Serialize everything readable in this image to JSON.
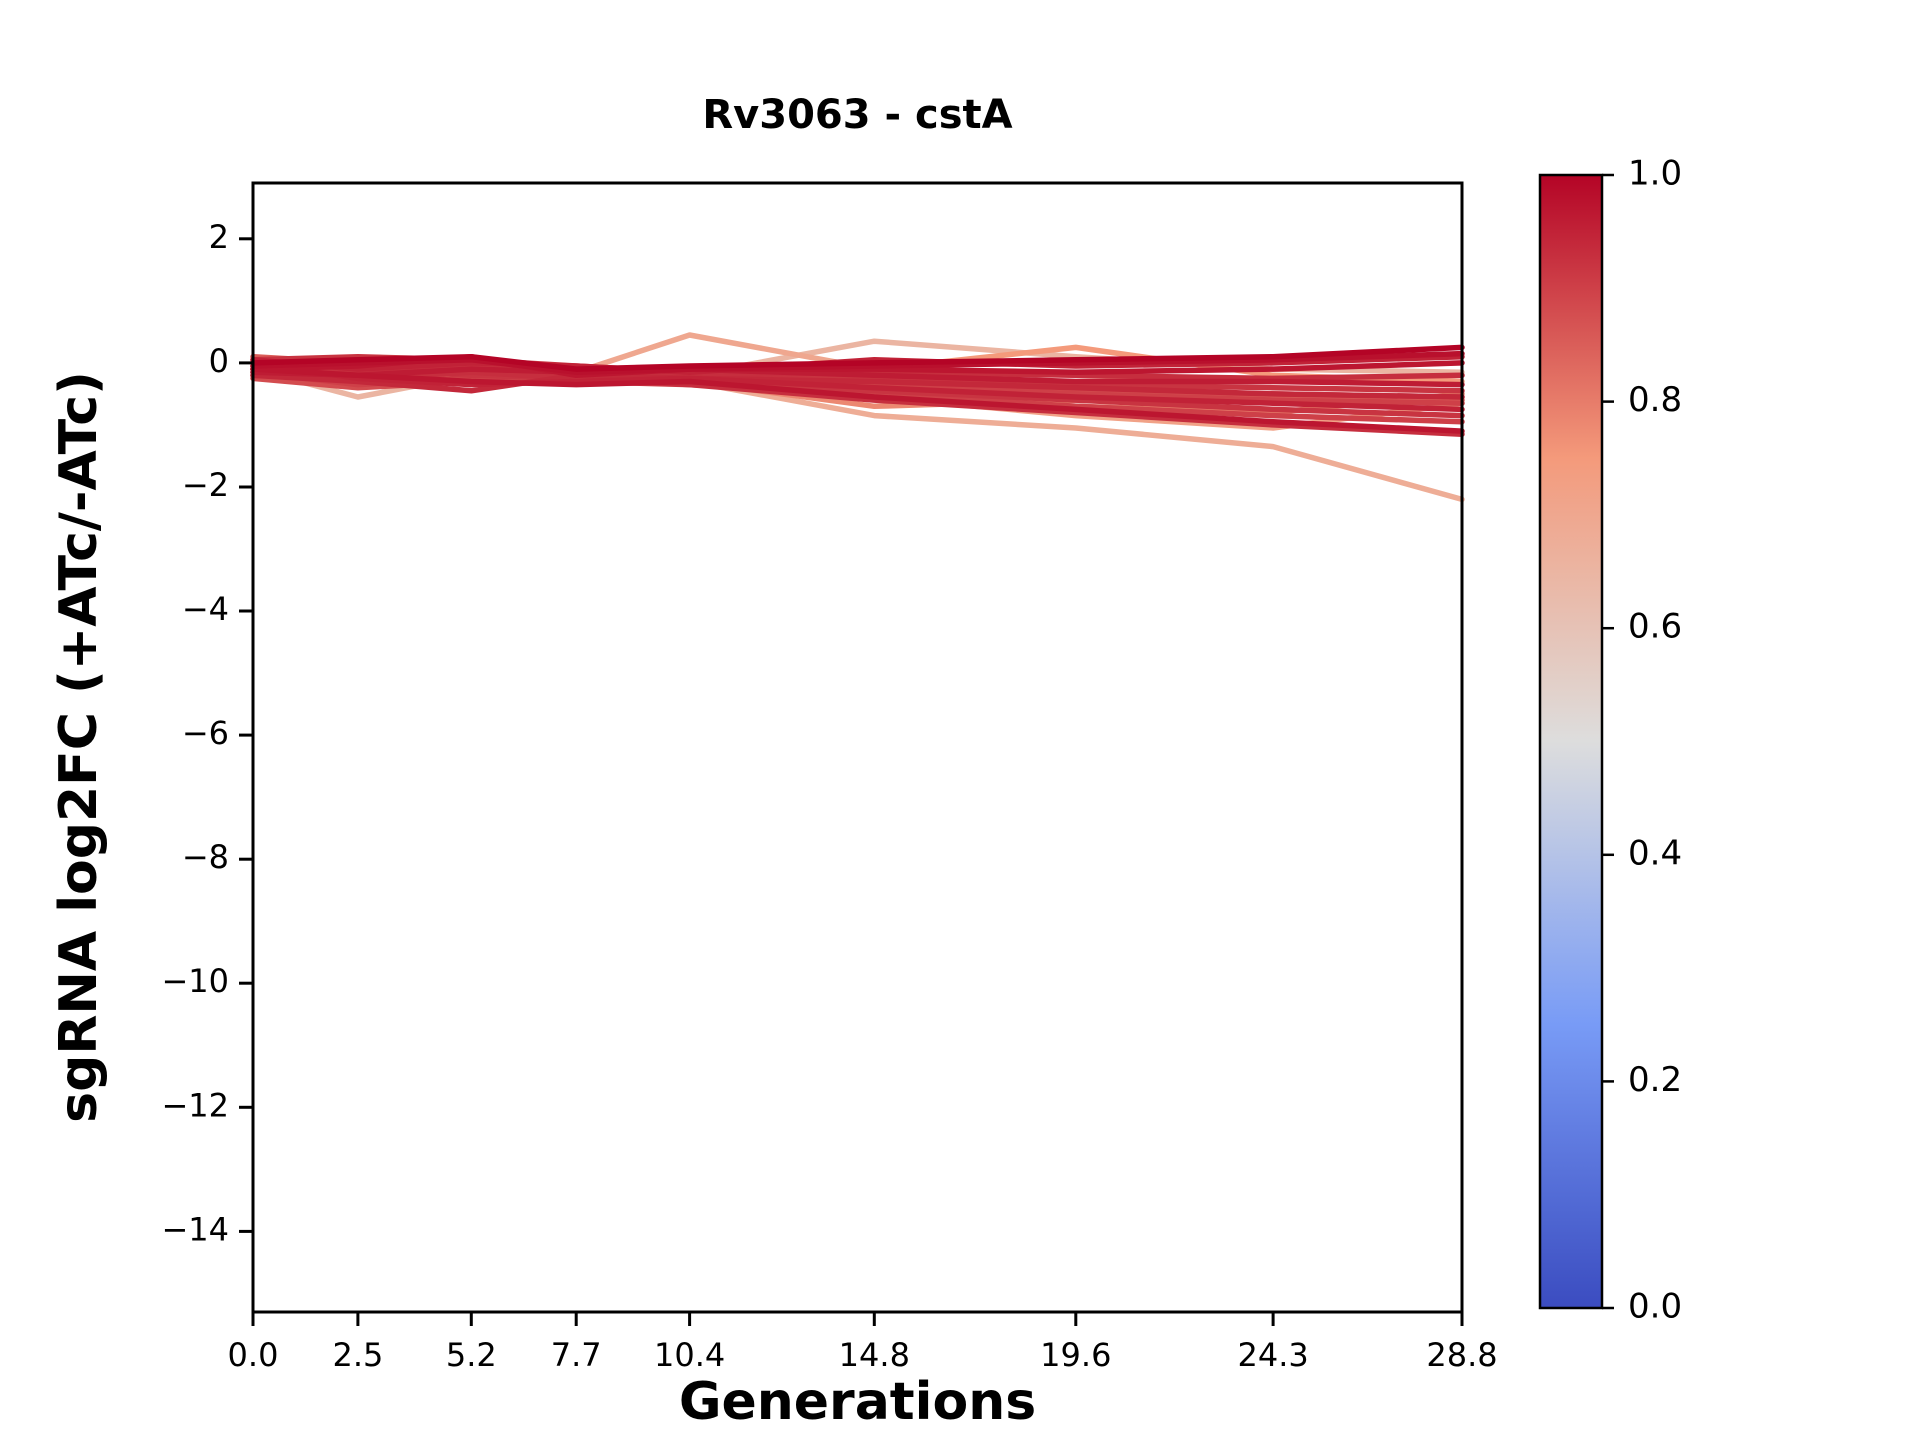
{
  "chart_data": {
    "type": "line",
    "title": "Rv3063 - cstA",
    "xlabel": "Generations",
    "ylabel": "sgRNA log2FC (+ATc/-ATc)",
    "x": [
      0.0,
      2.5,
      5.2,
      7.7,
      10.4,
      14.8,
      19.6,
      24.3,
      28.8
    ],
    "x_tick_labels": [
      "0.0",
      "2.5",
      "5.2",
      "7.7",
      "10.4",
      "14.8",
      "19.6",
      "24.3",
      "28.8"
    ],
    "y_ticks": [
      2,
      0,
      -2,
      -4,
      -6,
      -8,
      -10,
      -12,
      -14
    ],
    "xlim": [
      0,
      28.8
    ],
    "ylim": [
      -15.3,
      2.9
    ],
    "grid": false,
    "colormap": "coolwarm",
    "colorbar": {
      "vmin": 0.0,
      "vmax": 1.0,
      "tick_labels": [
        "1.0",
        "0.8",
        "0.6",
        "0.4",
        "0.2",
        "0.0"
      ],
      "tick_values": [
        1.0,
        0.8,
        0.6,
        0.4,
        0.2,
        0.0
      ]
    },
    "series": [
      {
        "c": 0.65,
        "values": [
          -0.1,
          -0.55,
          -0.2,
          -0.3,
          -0.2,
          0.35,
          0.1,
          -0.1,
          -0.15
        ]
      },
      {
        "c": 0.68,
        "values": [
          0.0,
          -0.2,
          -0.1,
          -0.2,
          -0.3,
          -0.85,
          -1.05,
          -1.35,
          -2.2
        ]
      },
      {
        "c": 0.7,
        "values": [
          0.0,
          -0.3,
          0.05,
          -0.15,
          0.45,
          -0.1,
          -0.2,
          -0.3,
          -0.2
        ]
      },
      {
        "c": 0.72,
        "values": [
          -0.05,
          -0.15,
          -0.2,
          -0.25,
          -0.3,
          -0.55,
          -0.85,
          -1.05,
          -0.65
        ]
      },
      {
        "c": 0.75,
        "values": [
          0.0,
          -0.1,
          -0.05,
          -0.15,
          -0.2,
          -0.1,
          0.25,
          -0.2,
          -0.3
        ]
      },
      {
        "c": 0.78,
        "values": [
          -0.1,
          -0.2,
          -0.25,
          -0.3,
          -0.3,
          -0.7,
          -0.6,
          -0.55,
          -0.6
        ]
      },
      {
        "c": 0.8,
        "values": [
          0.0,
          -0.1,
          -0.15,
          -0.2,
          -0.25,
          -0.5,
          -0.7,
          -0.8,
          -0.5
        ]
      },
      {
        "c": 0.85,
        "values": [
          0.1,
          0.0,
          -0.1,
          -0.15,
          -0.2,
          -0.3,
          -0.45,
          -0.55,
          -0.6
        ]
      },
      {
        "c": 0.88,
        "values": [
          -0.25,
          -0.4,
          -0.3,
          -0.2,
          -0.25,
          -0.35,
          -0.45,
          -0.5,
          -0.55
        ]
      },
      {
        "c": 0.9,
        "values": [
          -0.1,
          -0.15,
          -0.3,
          -0.25,
          -0.2,
          -0.35,
          -0.5,
          -0.6,
          -0.65
        ]
      },
      {
        "c": 0.9,
        "values": [
          -0.15,
          -0.35,
          -0.25,
          -0.3,
          -0.35,
          -0.5,
          -0.7,
          -0.85,
          -0.95
        ]
      },
      {
        "c": 0.92,
        "values": [
          0.05,
          0.1,
          0.05,
          -0.05,
          -0.15,
          -0.25,
          -0.35,
          -0.4,
          -0.45
        ]
      },
      {
        "c": 0.92,
        "values": [
          -0.05,
          -0.1,
          -0.2,
          -0.25,
          -0.3,
          -0.45,
          -0.6,
          -0.75,
          -0.85
        ]
      },
      {
        "c": 0.93,
        "values": [
          0.0,
          -0.15,
          -0.05,
          -0.1,
          -0.2,
          -0.15,
          -0.2,
          -0.25,
          -0.2
        ]
      },
      {
        "c": 0.93,
        "values": [
          -0.2,
          -0.25,
          -0.15,
          -0.25,
          -0.35,
          -0.6,
          -0.8,
          -1.0,
          -1.15
        ]
      },
      {
        "c": 0.94,
        "values": [
          -0.2,
          -0.3,
          -0.45,
          -0.2,
          -0.25,
          -0.3,
          -0.4,
          -0.5,
          -0.55
        ]
      },
      {
        "c": 0.95,
        "values": [
          0.05,
          -0.1,
          0.0,
          -0.05,
          -0.15,
          0.05,
          -0.05,
          0.0,
          0.1
        ]
      },
      {
        "c": 0.95,
        "values": [
          0.0,
          -0.25,
          -0.35,
          -0.3,
          -0.25,
          -0.4,
          -0.55,
          -0.65,
          -0.75
        ]
      },
      {
        "c": 0.96,
        "values": [
          -0.15,
          -0.2,
          -0.1,
          -0.15,
          -0.1,
          -0.2,
          -0.3,
          -0.3,
          -0.35
        ]
      },
      {
        "c": 0.97,
        "values": [
          -0.1,
          -0.05,
          0.1,
          -0.2,
          -0.1,
          -0.1,
          -0.15,
          -0.1,
          0.0
        ]
      },
      {
        "c": 0.97,
        "values": [
          -0.1,
          -0.2,
          -0.3,
          -0.35,
          -0.3,
          -0.55,
          -0.75,
          -0.95,
          -1.1
        ]
      },
      {
        "c": 0.98,
        "values": [
          -0.05,
          0.0,
          0.05,
          -0.15,
          -0.1,
          -0.05,
          0.0,
          0.05,
          0.15
        ]
      },
      {
        "c": 1.0,
        "values": [
          0.0,
          0.05,
          0.1,
          -0.1,
          -0.05,
          0.0,
          0.05,
          0.1,
          0.25
        ]
      }
    ]
  }
}
